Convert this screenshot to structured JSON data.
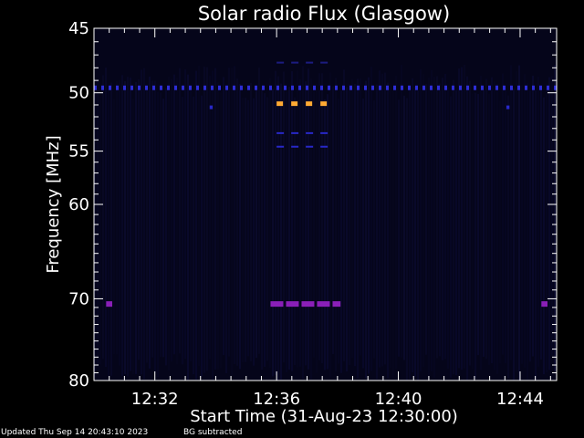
{
  "chart_data": {
    "type": "heatmap",
    "title": "Solar radio Flux (Glasgow)",
    "xlabel": "Start Time (31-Aug-23 12:30:00)",
    "ylabel": "Frequency [MHz]",
    "x_unit": "minutes after 12:30:00",
    "xlim": [
      0.0,
      15.2
    ],
    "ylim_reversed": [
      45,
      80
    ],
    "y_scale": "log",
    "x_ticks": [
      {
        "value": 2,
        "label": "12:32"
      },
      {
        "value": 6,
        "label": "12:36"
      },
      {
        "value": 10,
        "label": "12:40"
      },
      {
        "value": 14,
        "label": "12:44"
      }
    ],
    "y_ticks": [
      {
        "value": 45,
        "label": "45"
      },
      {
        "value": 50,
        "label": "50"
      },
      {
        "value": 55,
        "label": "55"
      },
      {
        "value": 60,
        "label": "60"
      },
      {
        "value": 70,
        "label": "70"
      },
      {
        "value": 80,
        "label": "80"
      }
    ],
    "background_color": "#05051a",
    "features": [
      {
        "type": "band",
        "freq": 49.6,
        "x_start": 0.0,
        "x_end": 15.2,
        "color": "#2d2dd6",
        "style": "dashed"
      },
      {
        "type": "band",
        "freq": 70.6,
        "x_start": 0.4,
        "x_end": 0.6,
        "color": "#8a1fb8",
        "style": "solid"
      },
      {
        "type": "band",
        "freq": 70.6,
        "x_start": 5.8,
        "x_end": 8.1,
        "color": "#8a1fb8",
        "style": "dashed"
      },
      {
        "type": "band",
        "freq": 70.6,
        "x_start": 14.7,
        "x_end": 14.9,
        "color": "#8a1fb8",
        "style": "solid"
      },
      {
        "type": "band",
        "freq": 50.9,
        "x_start": 6.0,
        "x_end": 7.7,
        "color": "#ffaa33",
        "style": "dashed"
      },
      {
        "type": "band",
        "freq": 47.6,
        "x_start": 6.0,
        "x_end": 7.7,
        "color": "#1c1c80",
        "style": "dashed"
      },
      {
        "type": "band",
        "freq": 53.4,
        "x_start": 6.0,
        "x_end": 7.7,
        "color": "#2828c8",
        "style": "dashed"
      },
      {
        "type": "band",
        "freq": 54.6,
        "x_start": 6.0,
        "x_end": 7.7,
        "color": "#2828c8",
        "style": "dashed"
      },
      {
        "type": "band",
        "freq": 51.2,
        "x_start": 3.8,
        "x_end": 3.9,
        "color": "#2828c8",
        "style": "solid"
      },
      {
        "type": "band",
        "freq": 51.2,
        "x_start": 13.55,
        "x_end": 13.65,
        "color": "#2828c8",
        "style": "solid"
      }
    ]
  },
  "footer": {
    "updated": "Updated Thu Sep 14 20:43:10 2023",
    "note": "BG subtracted"
  }
}
